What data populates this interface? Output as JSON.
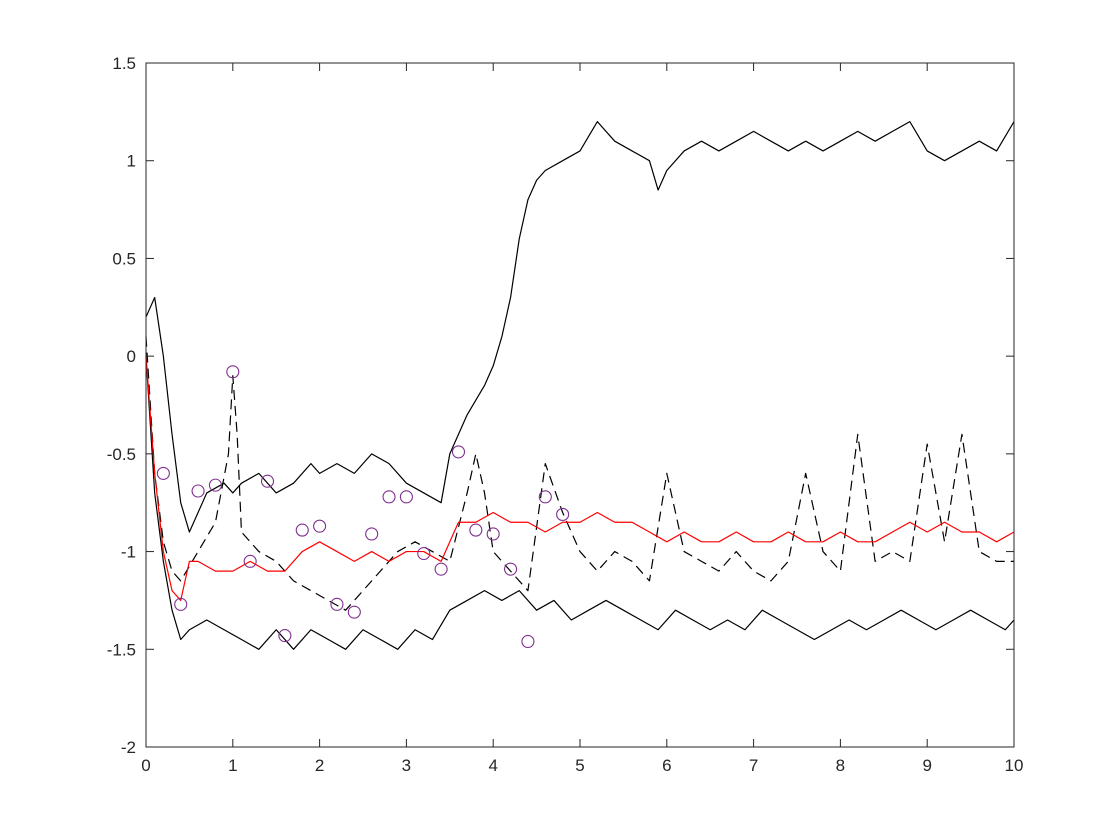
{
  "chart_data": {
    "type": "line",
    "title": "",
    "xlabel": "",
    "ylabel": "",
    "xlim": [
      0,
      10
    ],
    "ylim": [
      -2,
      1.5
    ],
    "x_ticks": [
      0,
      1,
      2,
      3,
      4,
      5,
      6,
      7,
      8,
      9,
      10
    ],
    "x_tick_labels": [
      "0",
      "1",
      "2",
      "3",
      "4",
      "5",
      "6",
      "7",
      "8",
      "9",
      "10"
    ],
    "y_ticks": [
      -2,
      -1.5,
      -1,
      -0.5,
      0,
      0.5,
      1,
      1.5
    ],
    "y_tick_labels": [
      "-2",
      "-1.5",
      "-1",
      "-0.5",
      "0",
      "0.5",
      "1",
      "1.5"
    ],
    "grid": false,
    "legend": "none",
    "colors": {
      "trajectory": "#000000",
      "mean": "#ff0000",
      "markers": "#7e2f8e",
      "axes": "#262626"
    },
    "series": [
      {
        "style": "solid",
        "color": "#000000",
        "x": [
          0,
          0.1,
          0.2,
          0.3,
          0.4,
          0.5,
          0.7,
          0.9,
          1.0,
          1.1,
          1.3,
          1.5,
          1.7,
          1.9,
          2.0,
          2.2,
          2.4,
          2.6,
          2.8,
          3.0,
          3.2,
          3.4,
          3.5,
          3.7,
          3.9,
          4.0,
          4.1,
          4.2,
          4.3,
          4.4,
          4.5,
          4.6,
          4.8,
          5.0,
          5.2,
          5.4,
          5.6,
          5.8,
          5.9,
          6.0,
          6.2,
          6.4,
          6.6,
          6.8,
          7.0,
          7.2,
          7.4,
          7.6,
          7.8,
          8.0,
          8.2,
          8.4,
          8.6,
          8.8,
          9.0,
          9.2,
          9.4,
          9.6,
          9.8,
          10.0
        ],
        "y": [
          0.2,
          0.3,
          0.0,
          -0.4,
          -0.75,
          -0.9,
          -0.7,
          -0.65,
          -0.7,
          -0.65,
          -0.6,
          -0.7,
          -0.65,
          -0.55,
          -0.6,
          -0.55,
          -0.6,
          -0.5,
          -0.55,
          -0.65,
          -0.7,
          -0.75,
          -0.5,
          -0.3,
          -0.15,
          -0.05,
          0.1,
          0.3,
          0.6,
          0.8,
          0.9,
          0.95,
          1.0,
          1.05,
          1.2,
          1.1,
          1.05,
          1.0,
          0.85,
          0.95,
          1.05,
          1.1,
          1.05,
          1.1,
          1.15,
          1.1,
          1.05,
          1.1,
          1.05,
          1.1,
          1.15,
          1.1,
          1.15,
          1.2,
          1.05,
          1.0,
          1.05,
          1.1,
          1.05,
          1.2
        ]
      },
      {
        "style": "solid",
        "color": "#000000",
        "x": [
          0,
          0.1,
          0.2,
          0.3,
          0.4,
          0.5,
          0.7,
          0.9,
          1.1,
          1.3,
          1.5,
          1.7,
          1.9,
          2.1,
          2.3,
          2.5,
          2.7,
          2.9,
          3.1,
          3.3,
          3.5,
          3.7,
          3.9,
          4.1,
          4.3,
          4.5,
          4.7,
          4.9,
          5.1,
          5.3,
          5.5,
          5.7,
          5.9,
          6.1,
          6.3,
          6.5,
          6.7,
          6.9,
          7.1,
          7.3,
          7.5,
          7.7,
          7.9,
          8.1,
          8.3,
          8.5,
          8.7,
          8.9,
          9.1,
          9.3,
          9.5,
          9.7,
          9.9,
          10.0
        ],
        "y": [
          0.0,
          -0.7,
          -1.05,
          -1.3,
          -1.45,
          -1.4,
          -1.35,
          -1.4,
          -1.45,
          -1.5,
          -1.4,
          -1.5,
          -1.4,
          -1.45,
          -1.5,
          -1.4,
          -1.45,
          -1.5,
          -1.4,
          -1.45,
          -1.3,
          -1.25,
          -1.2,
          -1.25,
          -1.2,
          -1.3,
          -1.25,
          -1.35,
          -1.3,
          -1.25,
          -1.3,
          -1.35,
          -1.4,
          -1.3,
          -1.35,
          -1.4,
          -1.35,
          -1.4,
          -1.3,
          -1.35,
          -1.4,
          -1.45,
          -1.4,
          -1.35,
          -1.4,
          -1.35,
          -1.3,
          -1.35,
          -1.4,
          -1.35,
          -1.3,
          -1.35,
          -1.4,
          -1.35
        ]
      },
      {
        "style": "dashed",
        "color": "#000000",
        "x": [
          0,
          0.1,
          0.2,
          0.3,
          0.4,
          0.6,
          0.8,
          0.95,
          1.0,
          1.05,
          1.1,
          1.3,
          1.5,
          1.7,
          1.9,
          2.1,
          2.3,
          2.5,
          2.7,
          2.9,
          3.1,
          3.3,
          3.5,
          3.7,
          3.8,
          3.9,
          4.0,
          4.2,
          4.4,
          4.6,
          4.8,
          5.0,
          5.2,
          5.4,
          5.6,
          5.8,
          6.0,
          6.2,
          6.4,
          6.6,
          6.8,
          7.0,
          7.2,
          7.4,
          7.6,
          7.8,
          8.0,
          8.2,
          8.4,
          8.6,
          8.8,
          9.0,
          9.2,
          9.4,
          9.6,
          9.8,
          10.0
        ],
        "y": [
          0.1,
          -0.6,
          -0.95,
          -1.1,
          -1.15,
          -1.0,
          -0.85,
          -0.5,
          -0.1,
          -0.4,
          -0.9,
          -1.0,
          -1.05,
          -1.15,
          -1.2,
          -1.25,
          -1.3,
          -1.2,
          -1.1,
          -1.0,
          -0.95,
          -1.0,
          -1.05,
          -0.7,
          -0.5,
          -0.7,
          -1.0,
          -1.1,
          -1.2,
          -0.55,
          -0.8,
          -1.0,
          -1.1,
          -1.0,
          -1.05,
          -1.15,
          -0.6,
          -1.0,
          -1.05,
          -1.1,
          -1.0,
          -1.1,
          -1.15,
          -1.05,
          -0.6,
          -1.0,
          -1.1,
          -0.4,
          -1.05,
          -1.0,
          -1.05,
          -0.45,
          -0.95,
          -0.4,
          -1.0,
          -1.05,
          -1.05
        ]
      },
      {
        "style": "solid",
        "color": "#ff0000",
        "x": [
          0,
          0.1,
          0.2,
          0.3,
          0.4,
          0.5,
          0.6,
          0.8,
          1.0,
          1.2,
          1.4,
          1.6,
          1.8,
          2.0,
          2.2,
          2.4,
          2.6,
          2.8,
          3.0,
          3.2,
          3.4,
          3.6,
          3.8,
          4.0,
          4.2,
          4.4,
          4.6,
          4.8,
          5.0,
          5.2,
          5.4,
          5.6,
          5.8,
          6.0,
          6.2,
          6.4,
          6.6,
          6.8,
          7.0,
          7.2,
          7.4,
          7.6,
          7.8,
          8.0,
          8.2,
          8.4,
          8.6,
          8.8,
          9.0,
          9.2,
          9.4,
          9.6,
          9.8,
          10.0
        ],
        "y": [
          0.0,
          -0.6,
          -1.0,
          -1.2,
          -1.25,
          -1.05,
          -1.05,
          -1.1,
          -1.1,
          -1.05,
          -1.1,
          -1.1,
          -1.0,
          -0.95,
          -1.0,
          -1.05,
          -1.0,
          -1.05,
          -1.0,
          -1.0,
          -1.05,
          -0.85,
          -0.85,
          -0.8,
          -0.85,
          -0.85,
          -0.9,
          -0.85,
          -0.85,
          -0.8,
          -0.85,
          -0.85,
          -0.9,
          -0.95,
          -0.9,
          -0.95,
          -0.95,
          -0.9,
          -0.95,
          -0.95,
          -0.9,
          -0.95,
          -0.95,
          -0.9,
          -0.95,
          -0.95,
          -0.9,
          -0.85,
          -0.9,
          -0.85,
          -0.9,
          -0.9,
          -0.95,
          -0.9
        ]
      }
    ],
    "markers": {
      "shape": "circle",
      "color": "#7e2f8e",
      "x": [
        0.2,
        0.4,
        0.6,
        0.8,
        1.0,
        1.2,
        1.4,
        1.6,
        1.8,
        2.0,
        2.2,
        2.4,
        2.6,
        2.8,
        3.0,
        3.2,
        3.4,
        3.6,
        3.8,
        4.0,
        4.2,
        4.4,
        4.6,
        4.8
      ],
      "y": [
        -0.6,
        -1.27,
        -0.69,
        -0.66,
        -0.08,
        -1.05,
        -0.64,
        -1.43,
        -0.89,
        -0.87,
        -1.27,
        -1.31,
        -0.91,
        -0.72,
        -0.72,
        -1.01,
        -1.09,
        -0.49,
        -0.89,
        -0.91,
        -1.09,
        -1.46,
        -0.72,
        -0.81
      ]
    }
  }
}
